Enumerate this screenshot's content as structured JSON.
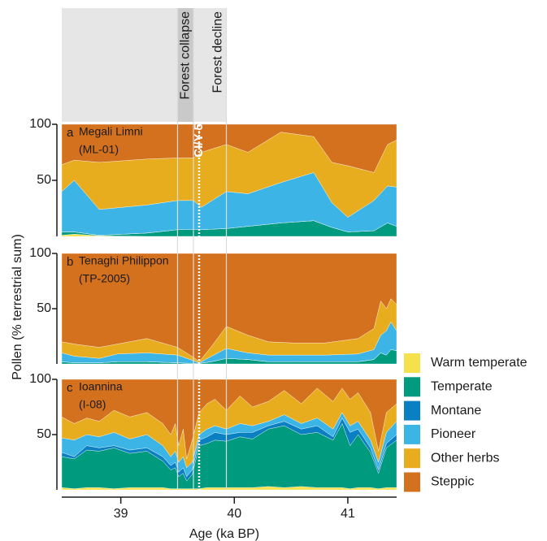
{
  "chart_data": [
    {
      "type": "stacked_area",
      "panel": "a",
      "title": "Megali Limni",
      "subtitle": "(ML-01)",
      "xlim": [
        38.48,
        41.43
      ],
      "ylim": [
        0,
        100
      ],
      "yticks": [
        50,
        100
      ],
      "x": [
        38.48,
        38.59,
        38.81,
        39.23,
        39.5,
        39.64,
        39.71,
        39.93,
        40.12,
        40.41,
        40.7,
        40.86,
        41.0,
        41.23,
        41.35,
        41.43
      ],
      "series": [
        {
          "name": "Warm temperate",
          "color": "#f6e04c",
          "values": [
            1,
            2,
            0.5,
            0,
            0,
            0,
            0,
            0,
            0,
            0,
            0,
            0,
            0,
            0,
            0,
            0
          ]
        },
        {
          "name": "Temperate",
          "color": "#009a7e",
          "values": [
            3,
            2,
            0.5,
            3,
            6,
            6,
            6,
            7,
            9,
            12,
            14,
            8,
            4,
            5,
            12,
            9
          ]
        },
        {
          "name": "Montane",
          "color": "#0a7fc1",
          "values": [
            0,
            0,
            0,
            0,
            0,
            0,
            0,
            0,
            0,
            0,
            0,
            0,
            0,
            0,
            0,
            0
          ]
        },
        {
          "name": "Pioneer",
          "color": "#3cb5e6",
          "values": [
            36,
            46,
            23,
            25,
            26,
            26,
            20,
            33,
            29,
            36,
            43,
            22,
            13,
            27,
            33,
            35
          ]
        },
        {
          "name": "Other herbs",
          "color": "#e8ac1f",
          "values": [
            24,
            18,
            42,
            41,
            38,
            38,
            49,
            42,
            37,
            45,
            32,
            36,
            46,
            25,
            37,
            42
          ]
        },
        {
          "name": "Steppic",
          "color": "#d4711f",
          "values": [
            36,
            32,
            34,
            31,
            30,
            30,
            25,
            18,
            25,
            7,
            11,
            34,
            37,
            43,
            18,
            14
          ]
        }
      ]
    },
    {
      "type": "stacked_area",
      "panel": "b",
      "title": "Tenaghi Philippon",
      "subtitle": "(TP-2005)",
      "y_label": "Pollen (% terrestrial sum)",
      "xlim": [
        38.48,
        41.43
      ],
      "ylim": [
        0,
        100
      ],
      "yticks": [
        50,
        100
      ],
      "x": [
        38.48,
        38.59,
        38.81,
        38.97,
        39.23,
        39.5,
        39.64,
        39.69,
        39.8,
        39.93,
        40.12,
        40.3,
        40.52,
        40.8,
        41.09,
        41.23,
        41.29,
        41.34,
        41.38,
        41.43
      ],
      "series": [
        {
          "name": "Warm temperate",
          "color": "#f6e04c",
          "values": [
            0,
            0,
            0,
            0,
            0,
            0,
            0,
            0,
            0,
            0,
            0,
            0,
            0,
            0,
            0,
            0,
            0,
            0,
            0,
            0
          ]
        },
        {
          "name": "Temperate",
          "color": "#009a7e",
          "values": [
            2,
            1,
            1,
            2,
            2,
            1,
            0.5,
            0.5,
            2,
            5,
            4,
            2,
            2,
            2,
            2,
            4,
            10,
            8,
            13,
            12
          ]
        },
        {
          "name": "Montane",
          "color": "#0a7fc1",
          "values": [
            0,
            0,
            0,
            0,
            0,
            0,
            0,
            0,
            0,
            0,
            0,
            0,
            0,
            0,
            0,
            0,
            0,
            0,
            0,
            0
          ]
        },
        {
          "name": "Pioneer",
          "color": "#3cb5e6",
          "values": [
            8,
            6,
            4,
            7,
            8,
            7,
            2.5,
            0.5,
            5,
            9,
            6,
            6,
            6,
            6,
            7,
            9,
            16,
            22,
            25,
            18
          ]
        },
        {
          "name": "Other herbs",
          "color": "#e8ac1f",
          "values": [
            10,
            11,
            10,
            9,
            13,
            7,
            3,
            1,
            9,
            20,
            16,
            12,
            11,
            11,
            14,
            19,
            31,
            20,
            21,
            24
          ]
        },
        {
          "name": "Steppic",
          "color": "#d4711f",
          "values": [
            80,
            82,
            85,
            82,
            77,
            85,
            94,
            98,
            84,
            66,
            74,
            80,
            81,
            81,
            77,
            68,
            43,
            50,
            41,
            46
          ]
        }
      ]
    },
    {
      "type": "stacked_area",
      "panel": "c",
      "title": "Ioannina",
      "subtitle": "(I-08)",
      "x_label": "Age (ka BP)",
      "xlim": [
        38.48,
        41.43
      ],
      "xticks": [
        39,
        40,
        41
      ],
      "ylim": [
        0,
        100
      ],
      "yticks": [
        50,
        100
      ],
      "x": [
        38.48,
        38.59,
        38.7,
        38.81,
        38.94,
        39.08,
        39.23,
        39.37,
        39.44,
        39.48,
        39.51,
        39.55,
        39.58,
        39.63,
        39.69,
        39.76,
        39.83,
        39.93,
        40.05,
        40.16,
        40.3,
        40.44,
        40.59,
        40.73,
        40.87,
        40.95,
        41.02,
        41.09,
        41.2,
        41.27,
        41.34,
        41.43
      ],
      "series": [
        {
          "name": "Warm temperate",
          "color": "#f6e04c",
          "values": [
            2,
            1,
            2,
            2,
            1,
            2,
            2,
            2,
            1,
            1,
            1,
            1,
            1,
            1,
            1,
            2,
            2,
            2,
            2,
            2,
            3,
            2,
            3,
            2,
            2,
            2,
            1,
            2,
            2,
            1,
            2,
            2
          ]
        },
        {
          "name": "Temperate",
          "color": "#009a7e",
          "values": [
            28,
            27,
            34,
            33,
            37,
            31,
            33,
            24,
            17,
            19,
            11,
            14,
            7,
            13,
            39,
            40,
            43,
            42,
            46,
            44,
            52,
            56,
            47,
            50,
            43,
            58,
            39,
            48,
            32,
            14,
            36,
            43
          ]
        },
        {
          "name": "Montane",
          "color": "#0a7fc1",
          "values": [
            4,
            2,
            4,
            3,
            2,
            3,
            3,
            4,
            4,
            5,
            4,
            5,
            4,
            4,
            5,
            6,
            7,
            6,
            4,
            6,
            3,
            4,
            5,
            6,
            3,
            5,
            12,
            5,
            4,
            3,
            4,
            5
          ]
        },
        {
          "name": "Pioneer",
          "color": "#3cb5e6",
          "values": [
            13,
            15,
            10,
            10,
            12,
            10,
            12,
            10,
            8,
            10,
            9,
            10,
            8,
            7,
            5,
            7,
            6,
            5,
            8,
            6,
            4,
            6,
            5,
            7,
            7,
            5,
            6,
            7,
            7,
            7,
            10,
            12
          ]
        },
        {
          "name": "Other herbs",
          "color": "#e8ac1f",
          "values": [
            19,
            15,
            15,
            14,
            20,
            20,
            20,
            20,
            20,
            25,
            15,
            25,
            8,
            20,
            20,
            23,
            24,
            17,
            25,
            17,
            18,
            22,
            18,
            27,
            25,
            22,
            24,
            26,
            25,
            10,
            18,
            16
          ]
        },
        {
          "name": "Steppic",
          "color": "#d4711f",
          "values": [
            34,
            40,
            35,
            38,
            28,
            34,
            30,
            40,
            50,
            40,
            60,
            45,
            72,
            55,
            30,
            22,
            18,
            28,
            15,
            25,
            20,
            10,
            22,
            8,
            20,
            8,
            18,
            12,
            30,
            65,
            30,
            22
          ]
        }
      ]
    }
  ],
  "events": [
    {
      "label": "Forest collapse",
      "start": 39.5,
      "end": 39.64
    },
    {
      "label": "Forest decline",
      "start": 39.64,
      "end": 39.93
    }
  ],
  "tephra": {
    "label": "CI/Y-5",
    "x": 39.69
  }
}
